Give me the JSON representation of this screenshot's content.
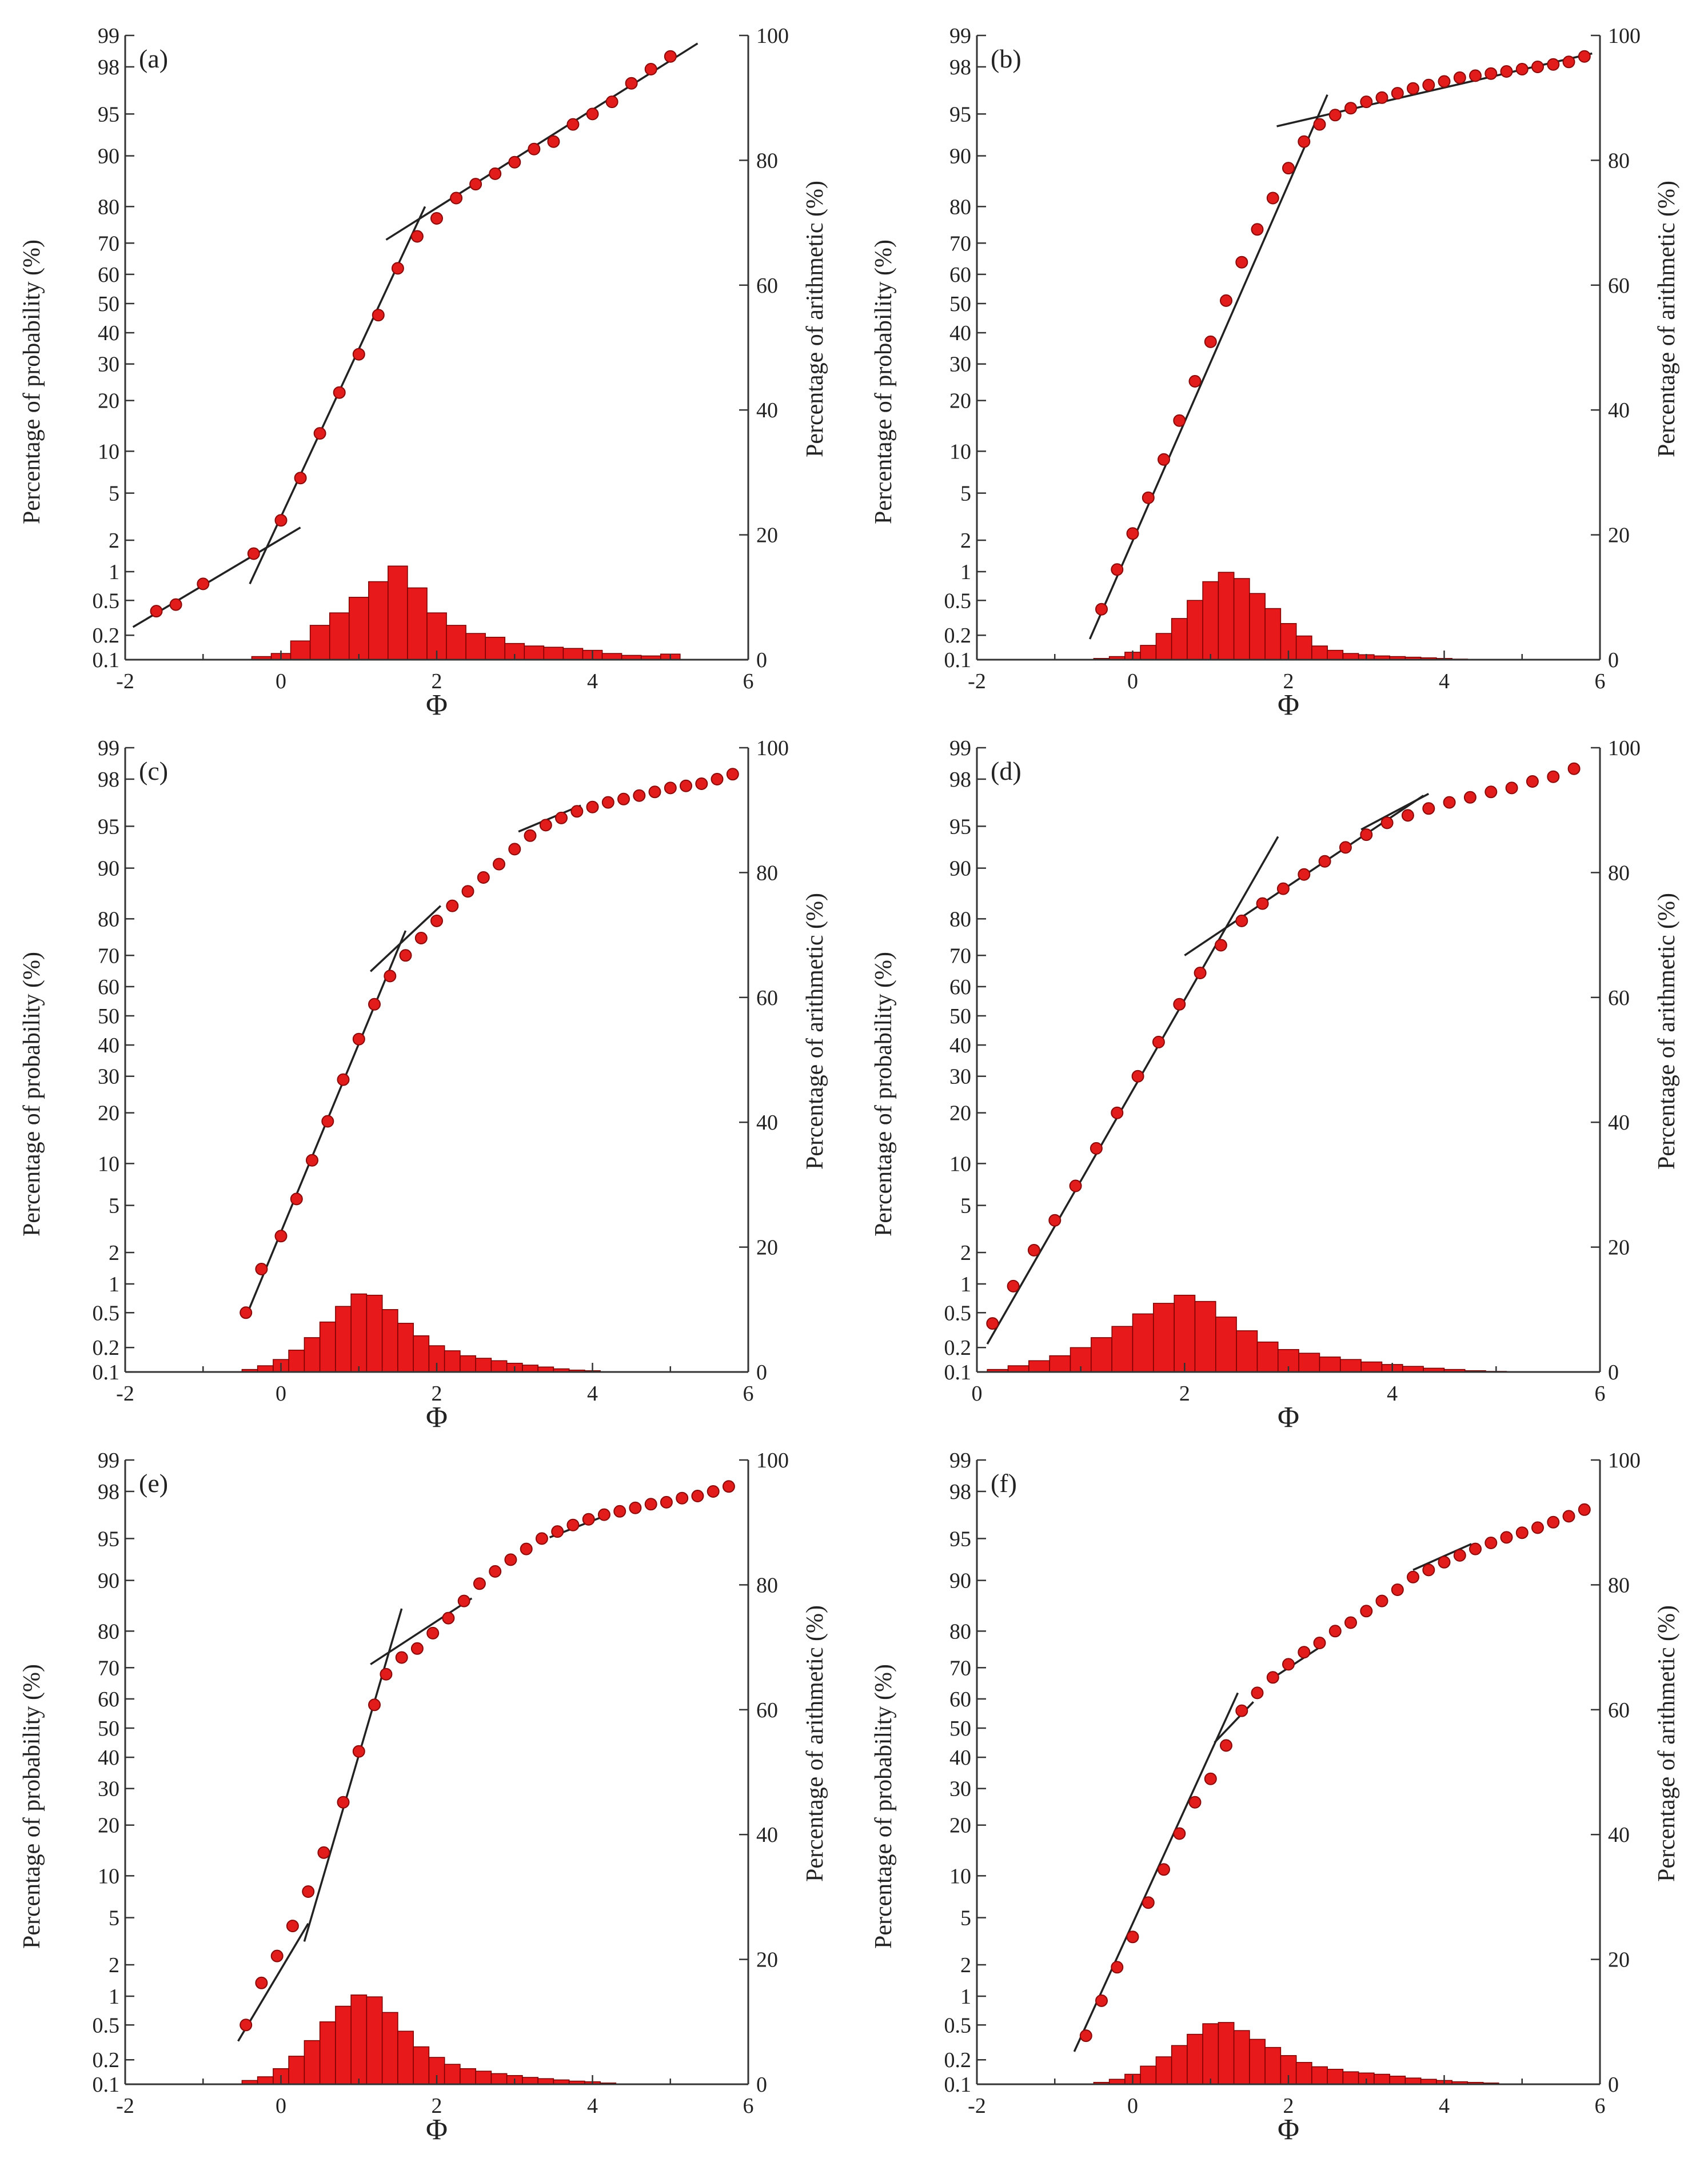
{
  "figure": {
    "colors": {
      "point": "#e21b1b",
      "point_edge": "#8a0a0a",
      "bar": "#e8191b",
      "bar_edge": "#7a0000",
      "line": "#222222",
      "axis": "#333333"
    }
  },
  "chart_data": [
    {
      "panel": "(a)",
      "type": "scatter+bar",
      "xlabel": "Φ",
      "ylabel_left": "Percentage of probability (%)",
      "ylabel_right": "Percentage of arithmetic (%)",
      "xlim": [
        -2,
        6
      ],
      "xticks": [
        "-2",
        "0",
        "2",
        "4",
        "6"
      ],
      "ylim_left": [
        0.1,
        99
      ],
      "yticks_left": [
        "0.1",
        "0.2",
        "0.5",
        "1",
        "2",
        "5",
        "10",
        "20",
        "30",
        "40",
        "50",
        "60",
        "70",
        "80",
        "90",
        "95",
        "98",
        "99"
      ],
      "yscale_left": "probability",
      "ylim_right": [
        0,
        100
      ],
      "yticks_right": [
        "0",
        "20",
        "40",
        "60",
        "80",
        "100"
      ],
      "cumulative": {
        "x": [
          -1.6,
          -1.35,
          -1.0,
          -0.35,
          0.0,
          0.25,
          0.5,
          0.75,
          1.0,
          1.25,
          1.5,
          1.75,
          2.0,
          2.25,
          2.5,
          2.75,
          3.0,
          3.25,
          3.5,
          3.75,
          4.0,
          4.25,
          4.5,
          4.75,
          5.0
        ],
        "y": [
          0.38,
          0.45,
          0.75,
          1.5,
          3.0,
          6.5,
          13,
          22,
          33,
          46,
          62,
          72,
          77,
          82,
          85,
          87,
          89,
          91,
          92,
          94,
          95,
          96,
          97.2,
          97.9,
          98.4
        ]
      },
      "trend_lines": [
        {
          "x": [
            -1.9,
            0.25
          ],
          "y": [
            0.25,
            2.6
          ]
        },
        {
          "x": [
            -0.4,
            1.85
          ],
          "y": [
            0.75,
            80
          ]
        },
        {
          "x": [
            1.35,
            5.35
          ],
          "y": [
            71,
            98.8
          ]
        }
      ],
      "histogram": {
        "x": [
          -0.25,
          0.0,
          0.25,
          0.5,
          0.75,
          1.0,
          1.25,
          1.5,
          1.75,
          2.0,
          2.25,
          2.5,
          2.75,
          3.0,
          3.25,
          3.5,
          3.75,
          4.0,
          4.25,
          4.5,
          4.75,
          5.0
        ],
        "y": [
          0.5,
          1.0,
          3.0,
          5.5,
          7.5,
          10,
          12.5,
          15,
          11.5,
          7.5,
          5.5,
          4.2,
          3.6,
          2.6,
          2.2,
          2.0,
          1.8,
          1.5,
          1.0,
          0.7,
          0.6,
          0.9
        ]
      }
    },
    {
      "panel": "(b)",
      "type": "scatter+bar",
      "xlabel": "Φ",
      "ylabel_left": "Percentage of probability (%)",
      "ylabel_right": "Percentage of arithmetic (%)",
      "xlim": [
        -2,
        6
      ],
      "xticks": [
        "-2",
        "0",
        "2",
        "4",
        "6"
      ],
      "ylim_left": [
        0.1,
        99
      ],
      "yticks_left": [
        "0.1",
        "0.2",
        "0.5",
        "1",
        "2",
        "5",
        "10",
        "20",
        "30",
        "40",
        "50",
        "60",
        "70",
        "80",
        "90",
        "95",
        "98",
        "99"
      ],
      "yscale_left": "probability",
      "ylim_right": [
        0,
        100
      ],
      "yticks_right": [
        "0",
        "20",
        "40",
        "60",
        "80",
        "100"
      ],
      "cumulative": {
        "x": [
          -0.4,
          -0.2,
          0.0,
          0.2,
          0.4,
          0.6,
          0.8,
          1.0,
          1.2,
          1.4,
          1.6,
          1.8,
          2.0,
          2.2,
          2.4,
          2.6,
          2.8,
          3.0,
          3.2,
          3.4,
          3.6,
          3.8,
          4.0,
          4.2,
          4.4,
          4.6,
          4.8,
          5.0,
          5.2,
          5.4,
          5.6,
          5.8
        ],
        "y": [
          0.4,
          1.05,
          2.3,
          4.6,
          8.8,
          15.5,
          25,
          37,
          51,
          64,
          74,
          82,
          88,
          92,
          94,
          94.9,
          95.5,
          96.0,
          96.3,
          96.6,
          96.9,
          97.1,
          97.3,
          97.5,
          97.6,
          97.7,
          97.8,
          97.9,
          98.0,
          98.1,
          98.2,
          98.4
        ]
      },
      "trend_lines": [
        {
          "x": [
            -0.55,
            2.5
          ],
          "y": [
            0.18,
            96.5
          ]
        },
        {
          "x": [
            1.85,
            5.9
          ],
          "y": [
            93.8,
            98.5
          ]
        }
      ],
      "histogram": {
        "x": [
          -0.4,
          -0.2,
          0.0,
          0.2,
          0.4,
          0.6,
          0.8,
          1.0,
          1.2,
          1.4,
          1.6,
          1.8,
          2.0,
          2.2,
          2.4,
          2.6,
          2.8,
          3.0,
          3.2,
          3.4,
          3.6,
          3.8,
          4.0,
          4.2
        ],
        "y": [
          0.2,
          0.5,
          1.2,
          2.3,
          4.2,
          6.6,
          9.5,
          12.5,
          14,
          13,
          10.6,
          8.2,
          5.8,
          3.8,
          2.2,
          1.5,
          1.0,
          0.8,
          0.6,
          0.5,
          0.4,
          0.3,
          0.2,
          0.1
        ]
      }
    },
    {
      "panel": "(c)",
      "type": "scatter+bar",
      "xlabel": "Φ",
      "ylabel_left": "Percentage of probability (%)",
      "ylabel_right": "Percentage of arithmetic (%)",
      "xlim": [
        -2,
        6
      ],
      "xticks": [
        "-2",
        "0",
        "2",
        "4",
        "6"
      ],
      "ylim_left": [
        0.1,
        99
      ],
      "yticks_left": [
        "0.1",
        "0.2",
        "0.5",
        "1",
        "2",
        "5",
        "10",
        "20",
        "30",
        "40",
        "50",
        "60",
        "70",
        "80",
        "90",
        "95",
        "98",
        "99"
      ],
      "yscale_left": "probability",
      "ylim_right": [
        0,
        100
      ],
      "yticks_right": [
        "0",
        "20",
        "40",
        "60",
        "80",
        "100"
      ],
      "cumulative": {
        "x": [
          -0.45,
          -0.25,
          0.0,
          0.2,
          0.4,
          0.6,
          0.8,
          1.0,
          1.2,
          1.4,
          1.6,
          1.8,
          2.0,
          2.2,
          2.4,
          2.6,
          2.8,
          3.0,
          3.2,
          3.4,
          3.6,
          3.8,
          4.0,
          4.2,
          4.4,
          4.6,
          4.8,
          5.0,
          5.2,
          5.4,
          5.6,
          5.8
        ],
        "y": [
          0.5,
          1.4,
          2.8,
          5.6,
          10.5,
          18,
          29,
          42,
          54,
          63.5,
          70,
          75,
          79.5,
          83,
          86,
          88.5,
          90.6,
          92.6,
          94.1,
          95.1,
          95.7,
          96.2,
          96.5,
          96.8,
          97.0,
          97.2,
          97.4,
          97.6,
          97.7,
          97.8,
          98.0,
          98.2
        ]
      },
      "trend_lines": [
        {
          "x": [
            -0.45,
            1.6
          ],
          "y": [
            0.45,
            77
          ]
        },
        {
          "x": [
            1.15,
            2.05
          ],
          "y": [
            65,
            83
          ]
        },
        {
          "x": [
            3.05,
            3.85
          ],
          "y": [
            94.5,
            96.6
          ]
        }
      ],
      "histogram": {
        "x": [
          -0.4,
          -0.2,
          0.0,
          0.2,
          0.4,
          0.6,
          0.8,
          1.0,
          1.2,
          1.4,
          1.6,
          1.8,
          2.0,
          2.2,
          2.4,
          2.6,
          2.8,
          3.0,
          3.2,
          3.4,
          3.6,
          3.8,
          4.0
        ],
        "y": [
          0.4,
          1.0,
          2.0,
          3.5,
          5.5,
          8,
          10.5,
          12.5,
          12.3,
          10,
          7.8,
          5.8,
          4.2,
          3.4,
          2.6,
          2.2,
          1.8,
          1.4,
          1.1,
          0.8,
          0.5,
          0.3,
          0.2
        ]
      }
    },
    {
      "panel": "(d)",
      "type": "scatter+bar",
      "xlabel": "Φ",
      "ylabel_left": "Percentage of probability (%)",
      "ylabel_right": "Percentage of arithmetic (%)",
      "xlim": [
        0,
        6
      ],
      "xticks": [
        "0",
        "2",
        "4",
        "6"
      ],
      "ylim_left": [
        0.1,
        99
      ],
      "yticks_left": [
        "0.1",
        "0.2",
        "0.5",
        "1",
        "2",
        "5",
        "10",
        "20",
        "30",
        "40",
        "50",
        "60",
        "70",
        "80",
        "90",
        "95",
        "98",
        "99"
      ],
      "yscale_left": "probability",
      "ylim_right": [
        0,
        100
      ],
      "yticks_right": [
        "0",
        "20",
        "40",
        "60",
        "80",
        "100"
      ],
      "cumulative": {
        "x": [
          0.15,
          0.35,
          0.55,
          0.75,
          0.95,
          1.15,
          1.35,
          1.55,
          1.75,
          1.95,
          2.15,
          2.35,
          2.55,
          2.75,
          2.95,
          3.15,
          3.35,
          3.55,
          3.75,
          3.95,
          4.15,
          4.35,
          4.55,
          4.75,
          4.95,
          5.15,
          5.35,
          5.55,
          5.75
        ],
        "y": [
          0.38,
          0.95,
          2.1,
          3.8,
          7,
          12.5,
          20,
          30,
          41,
          54,
          64.5,
          73,
          79.5,
          83.5,
          86.5,
          89,
          91,
          92.8,
          94.2,
          95.3,
          95.9,
          96.4,
          96.8,
          97.1,
          97.4,
          97.6,
          97.9,
          98.1,
          98.4
        ]
      },
      "trend_lines": [
        {
          "x": [
            0.1,
            2.9
          ],
          "y": [
            0.22,
            94
          ]
        },
        {
          "x": [
            2.0,
            4.3
          ],
          "y": [
            70,
            97.2
          ]
        },
        {
          "x": [
            3.7,
            4.35
          ],
          "y": [
            94.7,
            97.3
          ]
        }
      ],
      "histogram": {
        "x": [
          0.2,
          0.4,
          0.6,
          0.8,
          1.0,
          1.2,
          1.4,
          1.6,
          1.8,
          2.0,
          2.2,
          2.4,
          2.6,
          2.8,
          3.0,
          3.2,
          3.4,
          3.6,
          3.8,
          4.0,
          4.2,
          4.4,
          4.6,
          4.8,
          5.0
        ],
        "y": [
          0.4,
          1.0,
          1.8,
          2.6,
          3.9,
          5.5,
          7.3,
          9.3,
          11,
          12.3,
          11.3,
          8.8,
          6.6,
          4.8,
          3.6,
          3.0,
          2.4,
          2.0,
          1.6,
          1.2,
          0.9,
          0.6,
          0.4,
          0.2,
          0.1
        ]
      }
    },
    {
      "panel": "(e)",
      "type": "scatter+bar",
      "xlabel": "Φ",
      "ylabel_left": "Percentage of probability (%)",
      "ylabel_right": "Percentage of arithmetic (%)",
      "xlim": [
        -2,
        6
      ],
      "xticks": [
        "-2",
        "0",
        "2",
        "4",
        "6"
      ],
      "ylim_left": [
        0.1,
        99
      ],
      "yticks_left": [
        "0.1",
        "0.2",
        "0.5",
        "1",
        "2",
        "5",
        "10",
        "20",
        "30",
        "40",
        "50",
        "60",
        "70",
        "80",
        "90",
        "95",
        "98",
        "99"
      ],
      "yscale_left": "probability",
      "ylim_right": [
        0,
        100
      ],
      "yticks_right": [
        "0",
        "20",
        "40",
        "60",
        "80",
        "100"
      ],
      "cumulative": {
        "x": [
          -0.45,
          -0.25,
          -0.05,
          0.15,
          0.35,
          0.55,
          0.8,
          1.0,
          1.2,
          1.35,
          1.55,
          1.75,
          1.95,
          2.15,
          2.35,
          2.55,
          2.75,
          2.95,
          3.15,
          3.35,
          3.55,
          3.75,
          3.95,
          4.15,
          4.35,
          4.55,
          4.75,
          4.95,
          5.15,
          5.35,
          5.55,
          5.75
        ],
        "y": [
          0.5,
          1.35,
          2.4,
          4.3,
          7.8,
          14,
          26,
          42,
          58,
          68,
          73,
          75.5,
          79.5,
          83,
          86.5,
          89.5,
          91.3,
          92.8,
          94.0,
          95.0,
          95.6,
          96.1,
          96.5,
          96.8,
          97.0,
          97.2,
          97.4,
          97.5,
          97.7,
          97.8,
          98.0,
          98.2
        ]
      },
      "trend_lines": [
        {
          "x": [
            -0.55,
            0.35
          ],
          "y": [
            0.33,
            4.5
          ]
        },
        {
          "x": [
            0.3,
            1.55
          ],
          "y": [
            3.2,
            85
          ]
        },
        {
          "x": [
            1.15,
            2.45
          ],
          "y": [
            71,
            87
          ]
        },
        {
          "x": [
            3.45,
            4.2
          ],
          "y": [
            95.1,
            96.8
          ]
        }
      ],
      "histogram": {
        "x": [
          -0.4,
          -0.2,
          0.0,
          0.2,
          0.4,
          0.6,
          0.8,
          1.0,
          1.2,
          1.4,
          1.6,
          1.8,
          2.0,
          2.2,
          2.4,
          2.6,
          2.8,
          3.0,
          3.2,
          3.4,
          3.6,
          3.8,
          4.0,
          4.2
        ],
        "y": [
          0.6,
          1.2,
          2.5,
          4.5,
          7,
          10,
          12.5,
          14.3,
          14,
          11.5,
          8.5,
          6.0,
          4.3,
          3.2,
          2.5,
          2.1,
          1.7,
          1.4,
          1.1,
          0.9,
          0.7,
          0.5,
          0.4,
          0.2
        ]
      }
    },
    {
      "panel": "(f)",
      "type": "scatter+bar",
      "xlabel": "Φ",
      "ylabel_left": "Percentage of probability (%)",
      "ylabel_right": "Percentage of arithmetic (%)",
      "xlim": [
        -2,
        6
      ],
      "xticks": [
        "-2",
        "0",
        "2",
        "4",
        "6"
      ],
      "ylim_left": [
        0.1,
        99
      ],
      "yticks_left": [
        "0.1",
        "0.2",
        "0.5",
        "1",
        "2",
        "5",
        "10",
        "20",
        "30",
        "40",
        "50",
        "60",
        "70",
        "80",
        "90",
        "95",
        "98",
        "99"
      ],
      "yscale_left": "probability",
      "ylim_right": [
        0,
        100
      ],
      "yticks_right": [
        "0",
        "20",
        "40",
        "60",
        "80",
        "100"
      ],
      "cumulative": {
        "x": [
          -0.6,
          -0.4,
          -0.2,
          0.0,
          0.2,
          0.4,
          0.6,
          0.8,
          1.0,
          1.2,
          1.4,
          1.6,
          1.8,
          2.0,
          2.2,
          2.4,
          2.6,
          2.8,
          3.0,
          3.2,
          3.4,
          3.6,
          3.8,
          4.0,
          4.2,
          4.4,
          4.6,
          4.8,
          5.0,
          5.2,
          5.4,
          5.6,
          5.8
        ],
        "y": [
          0.38,
          0.9,
          1.9,
          3.5,
          6.5,
          11,
          18,
          26,
          33,
          44,
          56,
          62,
          67,
          71,
          74.5,
          77,
          80,
          82,
          84.5,
          86.5,
          88.5,
          90.5,
          91.5,
          92.5,
          93.3,
          94,
          94.6,
          95.1,
          95.5,
          95.9,
          96.3,
          96.7,
          97.1
        ]
      },
      "trend_lines": [
        {
          "x": [
            -0.75,
            1.35
          ],
          "y": [
            0.25,
            62
          ]
        },
        {
          "x": [
            1.05,
            1.55
          ],
          "y": [
            45,
            59
          ]
        },
        {
          "x": [
            1.75,
            2.45
          ],
          "y": [
            66,
            76.5
          ]
        },
        {
          "x": [
            3.6,
            4.35
          ],
          "y": [
            91.5,
            94.5
          ]
        }
      ],
      "histogram": {
        "x": [
          -0.4,
          -0.2,
          0.0,
          0.2,
          0.4,
          0.6,
          0.8,
          1.0,
          1.2,
          1.4,
          1.6,
          1.8,
          2.0,
          2.2,
          2.4,
          2.6,
          2.8,
          3.0,
          3.2,
          3.4,
          3.6,
          3.8,
          4.0,
          4.2,
          4.4,
          4.6
        ],
        "y": [
          0.3,
          0.8,
          1.6,
          2.9,
          4.4,
          6.2,
          8,
          9.7,
          9.9,
          8.6,
          7.2,
          5.9,
          4.6,
          3.5,
          2.8,
          2.4,
          2.0,
          1.8,
          1.6,
          1.3,
          1.0,
          0.8,
          0.6,
          0.4,
          0.3,
          0.2
        ]
      }
    }
  ]
}
